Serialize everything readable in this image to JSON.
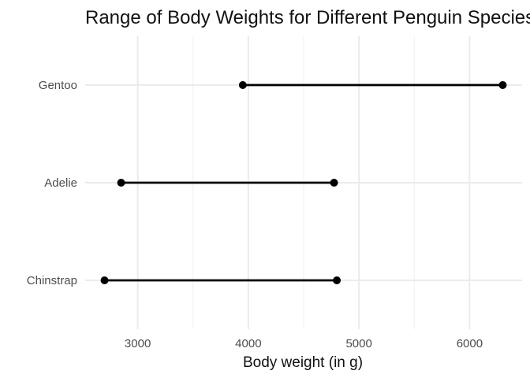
{
  "chart_data": {
    "type": "dumbbell",
    "title": "Range of Body Weights for Different Penguin Species",
    "xlabel": "Body weight (in g)",
    "ylabel": "",
    "xlim": [
      2525,
      6475
    ],
    "x_ticks": [
      3000,
      4000,
      5000,
      6000
    ],
    "x_minor_ticks": [
      2500,
      3500,
      4500,
      5500,
      6500
    ],
    "grid": true,
    "categories": [
      "Gentoo",
      "Adelie",
      "Chinstrap"
    ],
    "ranges": [
      {
        "species": "Gentoo",
        "min": 3950,
        "max": 6300
      },
      {
        "species": "Adelie",
        "min": 2850,
        "max": 4775
      },
      {
        "species": "Chinstrap",
        "min": 2700,
        "max": 4800
      }
    ],
    "colors": {
      "line": "#000000",
      "point": "#000000",
      "grid_major": "#ebebeb",
      "grid_minor": "#f2f2f2"
    }
  }
}
